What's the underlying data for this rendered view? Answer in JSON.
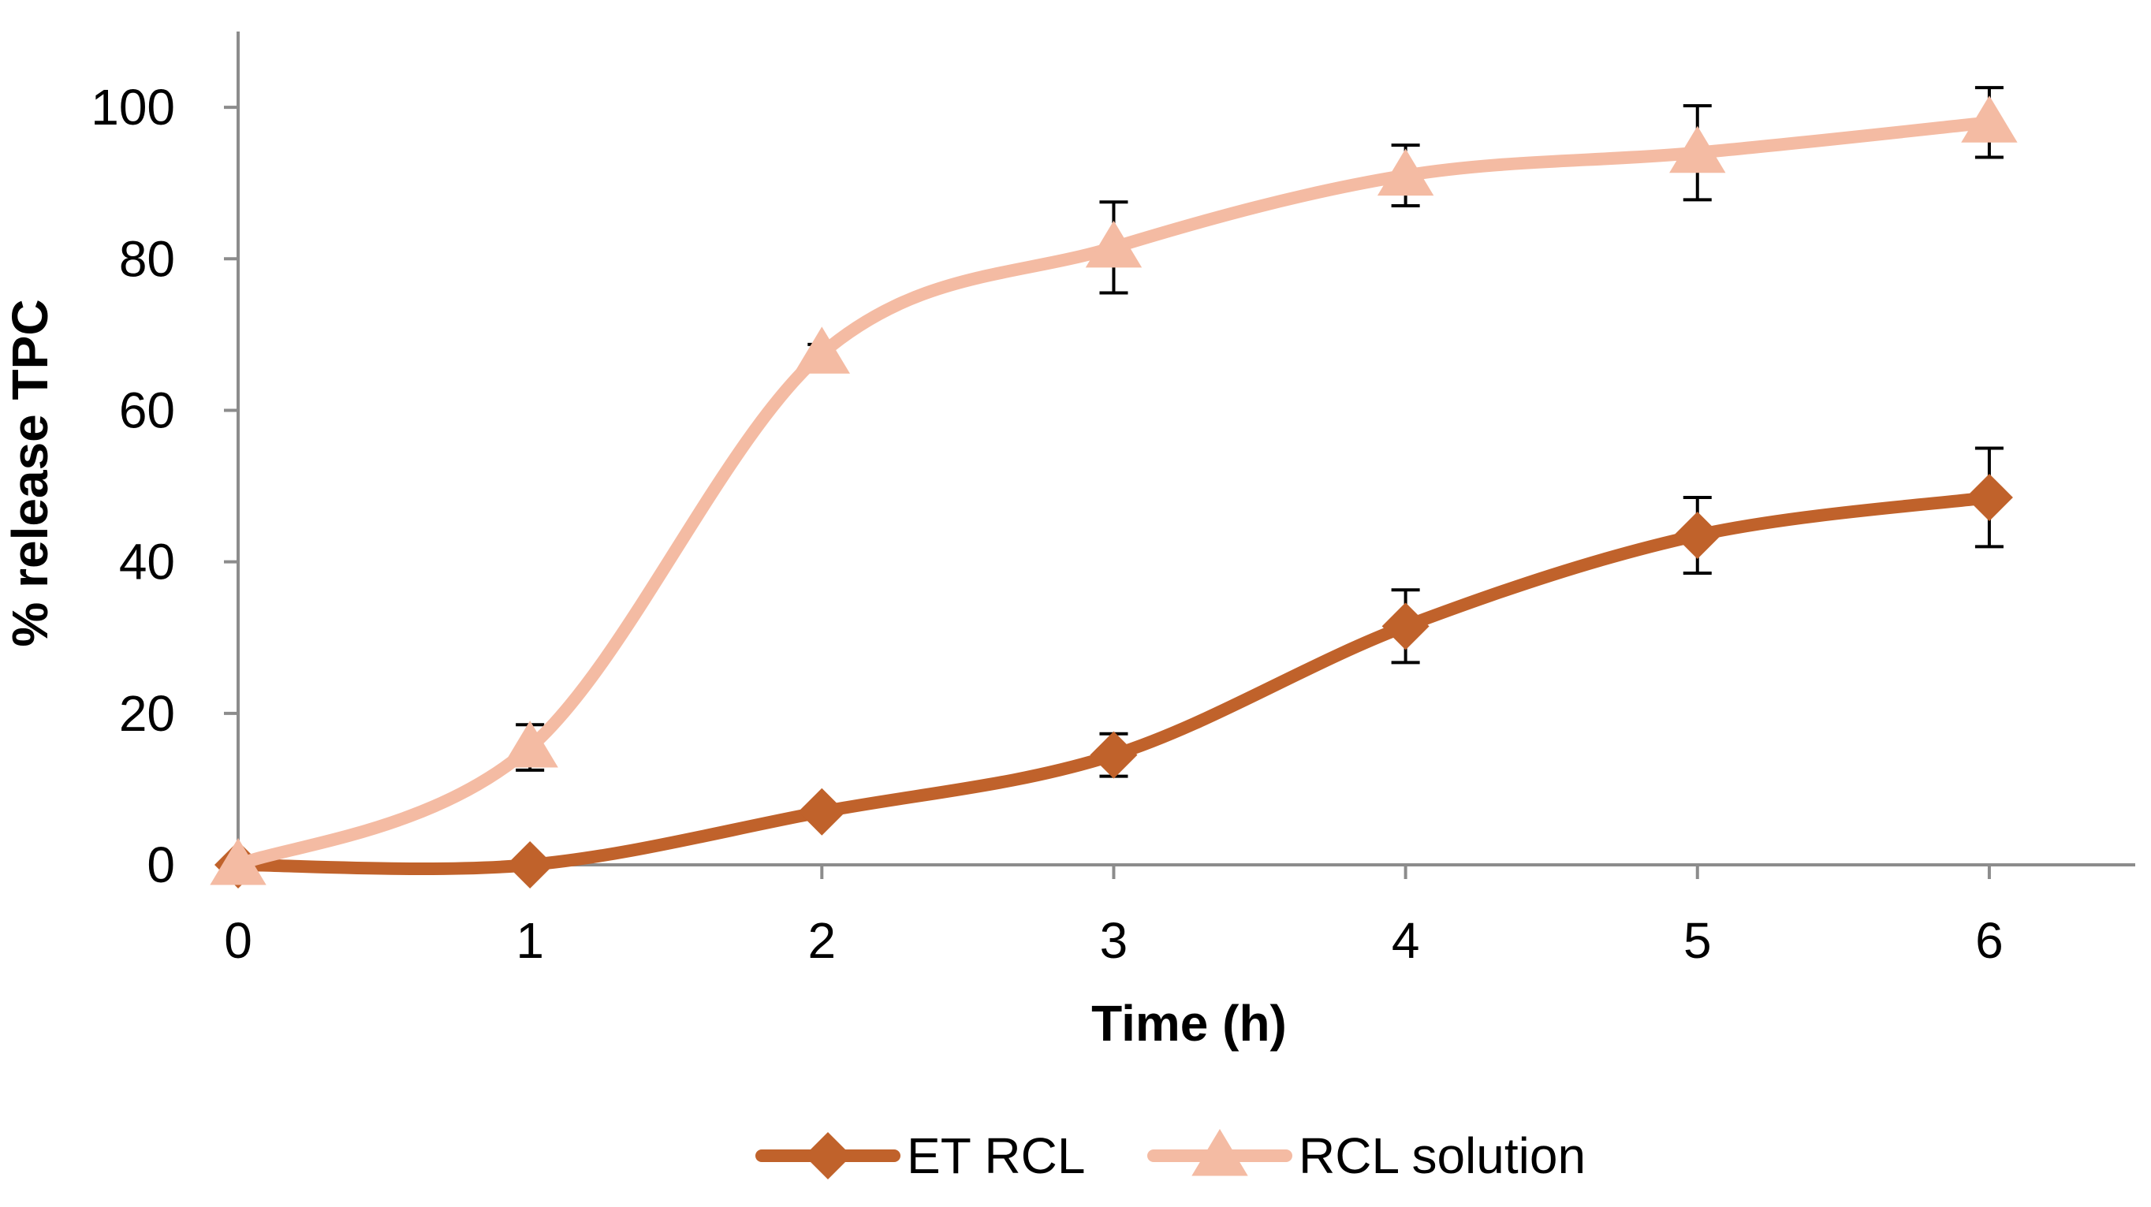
{
  "chart_data": {
    "type": "line",
    "title": "",
    "xlabel": "Time (h)",
    "ylabel": "% release TPC",
    "x": [
      0,
      1,
      2,
      3,
      4,
      5,
      6
    ],
    "xlim": [
      0,
      6.5
    ],
    "ylim": [
      0,
      110
    ],
    "xticks": [
      "0",
      "1",
      "2",
      "3",
      "4",
      "5",
      "6"
    ],
    "yticks": [
      "0",
      "20",
      "40",
      "60",
      "80",
      "100"
    ],
    "ytick_values": [
      0,
      20,
      40,
      60,
      80,
      100
    ],
    "grid": false,
    "smoothed": true,
    "legend_position": "bottom",
    "series": [
      {
        "name": "ET RCL",
        "marker": "diamond",
        "color": "#C0622B",
        "values": [
          0,
          0,
          7,
          14.5,
          31.5,
          43.5,
          48.5
        ],
        "errors": [
          0,
          0,
          0,
          2.8,
          4.8,
          5,
          6.5
        ]
      },
      {
        "name": "RCL solution",
        "marker": "triangle",
        "color": "#F4BBA3",
        "values": [
          0,
          15.5,
          67.5,
          81.5,
          91,
          94,
          98
        ],
        "errors": [
          0,
          3,
          1.2,
          6,
          4,
          6.2,
          4.6
        ]
      }
    ]
  }
}
